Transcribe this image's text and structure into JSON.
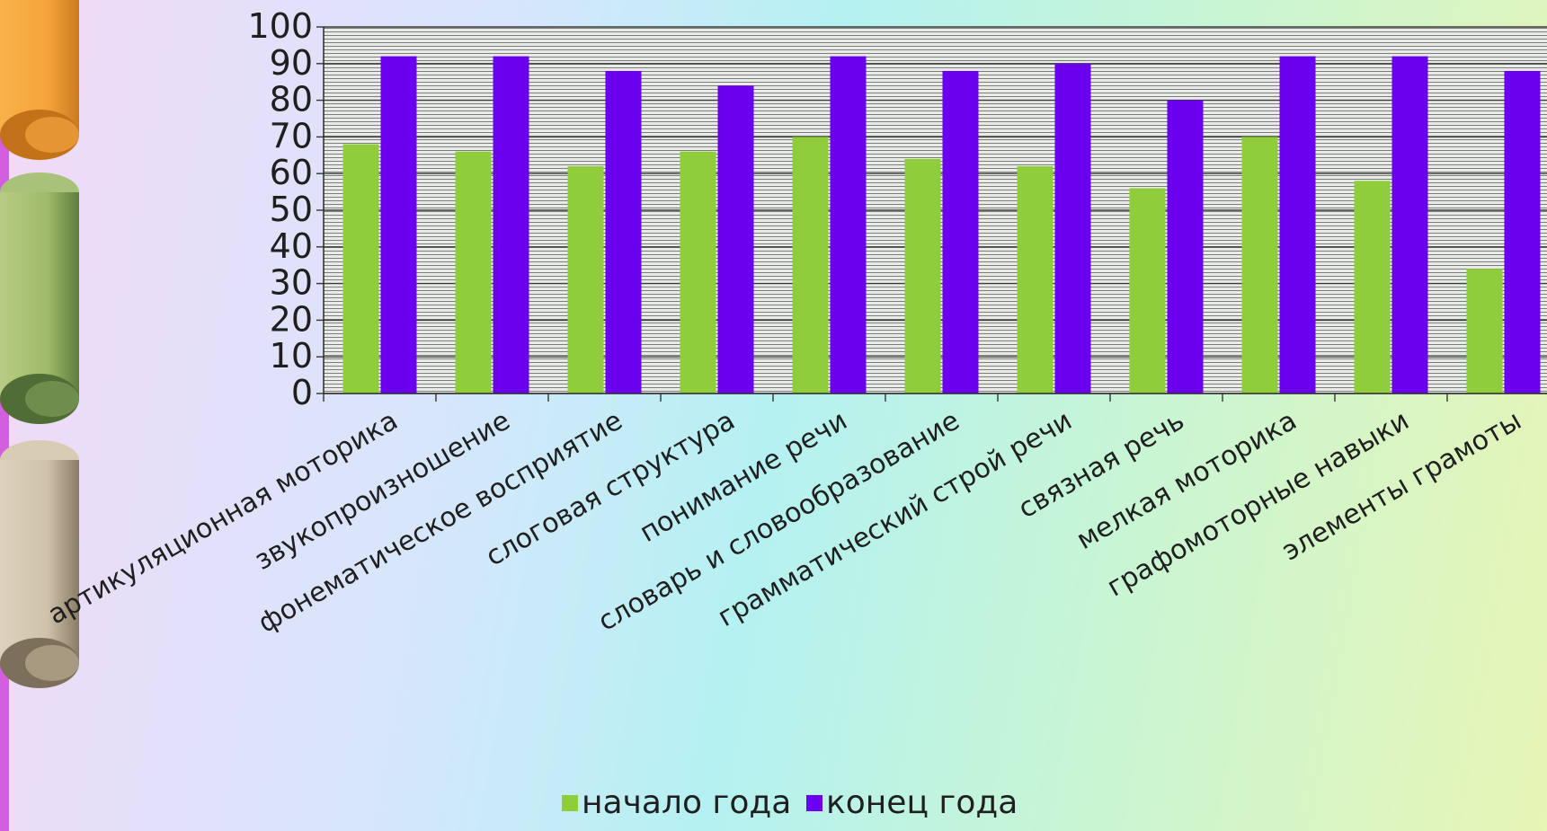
{
  "chart_data": {
    "type": "bar",
    "categories": [
      "артикуляционная моторика",
      "звукопроизношение",
      "фонематическое восприятие",
      "слоговая структура",
      "понимание речи",
      "словарь и словообразование",
      "грамматический строй речи",
      "связная речь",
      "мелкая моторика",
      "графомоторные навыки",
      "элементы грамоты"
    ],
    "series": [
      {
        "name": "начало года",
        "color": "#8fce3a",
        "values": [
          68,
          66,
          62,
          66,
          70,
          64,
          62,
          56,
          70,
          58,
          34
        ]
      },
      {
        "name": "конец года",
        "color": "#6a00ee",
        "values": [
          92,
          92,
          88,
          84,
          92,
          88,
          90,
          80,
          92,
          92,
          88
        ]
      }
    ],
    "yticks": [
      "0",
      "10",
      "20",
      "30",
      "40",
      "50",
      "60",
      "70",
      "80",
      "90",
      "100"
    ],
    "ylim": [
      0,
      100
    ],
    "grid": true,
    "legend_position": "bottom",
    "title": "",
    "xlabel": "",
    "ylabel": ""
  },
  "decor": {
    "ribbons": [
      {
        "name": "orange-ribbon",
        "color": "#f5a43a"
      },
      {
        "name": "green-ribbon",
        "color": "#9fba6a"
      },
      {
        "name": "beige-ribbon",
        "color": "#cfc2aa"
      }
    ],
    "left_bar_color": "#d35ee0"
  }
}
